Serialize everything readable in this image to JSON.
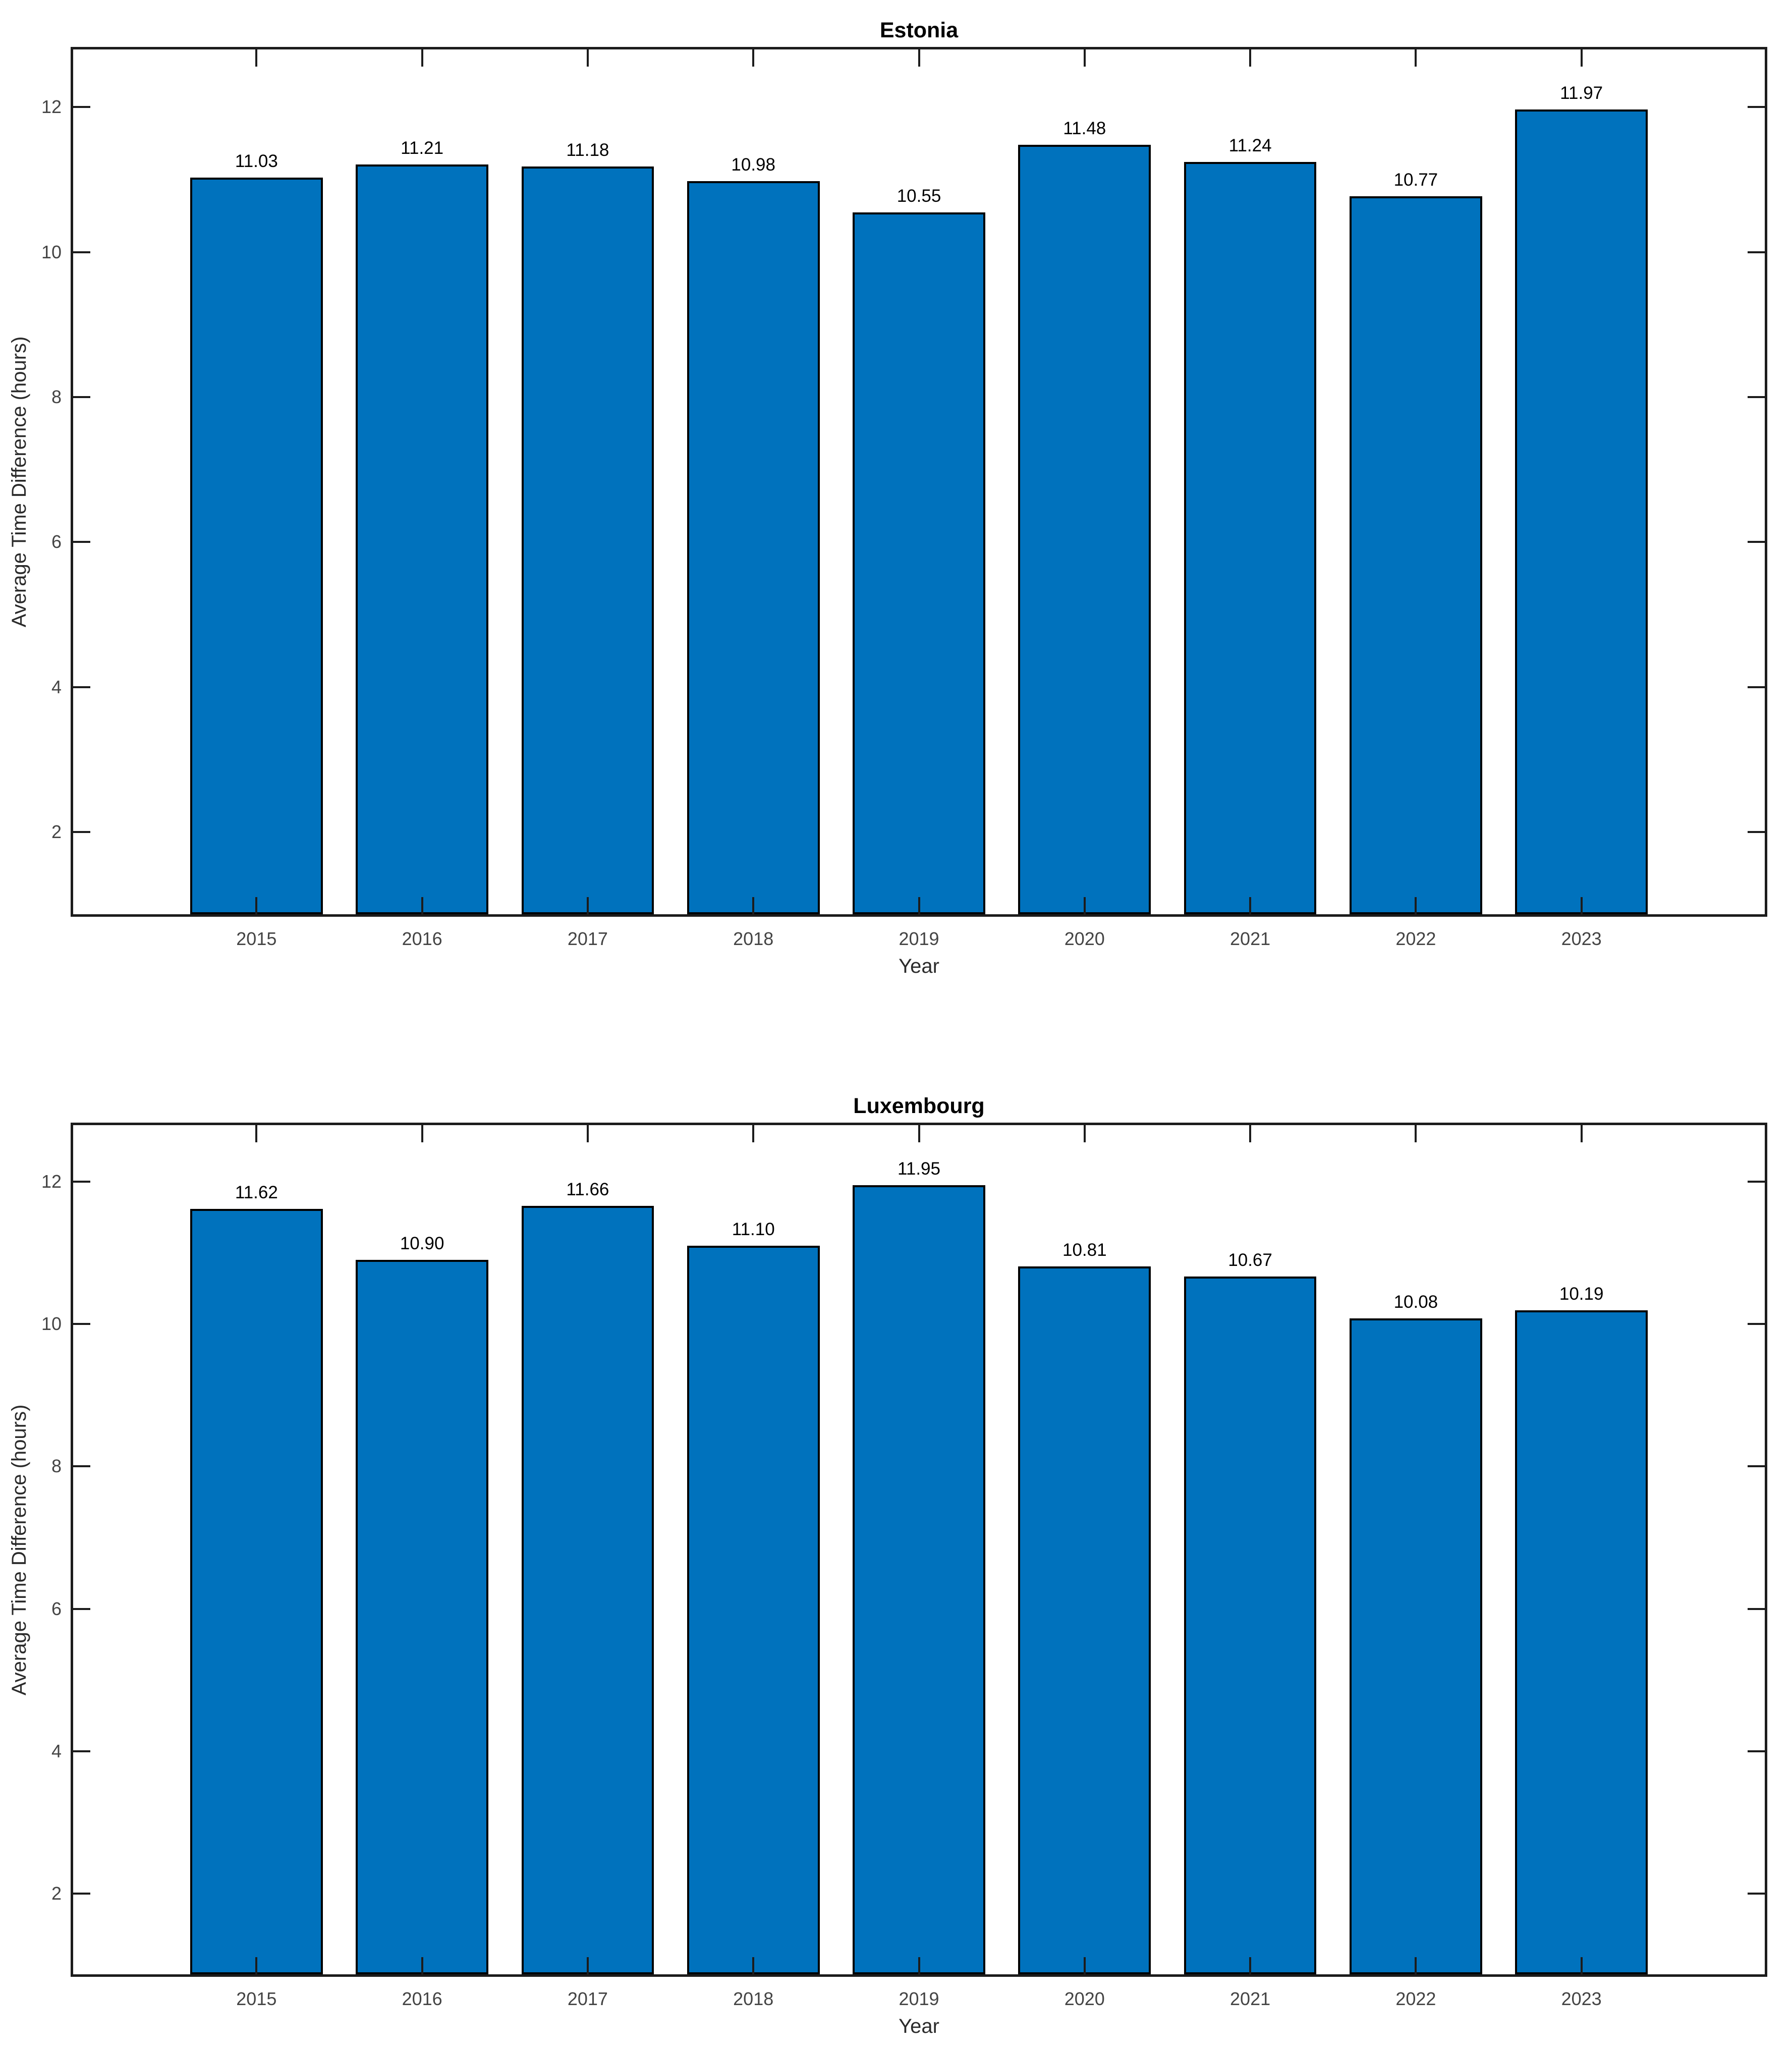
{
  "figure": {
    "background": "#ffffff"
  },
  "chart_data": [
    {
      "type": "bar",
      "title": "Estonia",
      "xlabel": "Year",
      "ylabel": "Average Time Difference (hours)",
      "categories": [
        "2015",
        "2016",
        "2017",
        "2018",
        "2019",
        "2020",
        "2021",
        "2022",
        "2023"
      ],
      "values": [
        11.03,
        11.21,
        11.18,
        10.98,
        10.55,
        11.48,
        11.24,
        10.77,
        11.97
      ],
      "value_labels": [
        "11.03",
        "11.21",
        "11.18",
        "10.98",
        "10.55",
        "11.48",
        "11.24",
        "10.77",
        "11.97"
      ],
      "yticks": [
        2,
        4,
        6,
        8,
        10,
        12
      ],
      "ytick_labels": [
        "2",
        "4",
        "6",
        "8",
        "10",
        "12"
      ],
      "ylim": [
        0.83,
        12.83
      ],
      "xlim_pad_units": 1.122,
      "bar_width_units": 0.8,
      "grid": false,
      "legend": null,
      "bar_color": "#0072BD",
      "bar_edge_color": "#000000",
      "axis_color": "#1c1c1c"
    },
    {
      "type": "bar",
      "title": "Luxembourg",
      "xlabel": "Year",
      "ylabel": "Average Time Difference (hours)",
      "categories": [
        "2015",
        "2016",
        "2017",
        "2018",
        "2019",
        "2020",
        "2021",
        "2022",
        "2023"
      ],
      "values": [
        11.62,
        10.9,
        11.66,
        11.1,
        11.95,
        10.81,
        10.67,
        10.08,
        10.19
      ],
      "value_labels": [
        "11.62",
        "10.90",
        "11.66",
        "11.10",
        "11.95",
        "10.81",
        "10.67",
        "10.08",
        "10.19"
      ],
      "yticks": [
        2,
        4,
        6,
        8,
        10,
        12
      ],
      "ytick_labels": [
        "2",
        "4",
        "6",
        "8",
        "10",
        "12"
      ],
      "ylim": [
        0.83,
        12.83
      ],
      "xlim_pad_units": 1.122,
      "bar_width_units": 0.8,
      "grid": false,
      "legend": null,
      "bar_color": "#0072BD",
      "bar_edge_color": "#000000",
      "axis_color": "#1c1c1c"
    }
  ]
}
